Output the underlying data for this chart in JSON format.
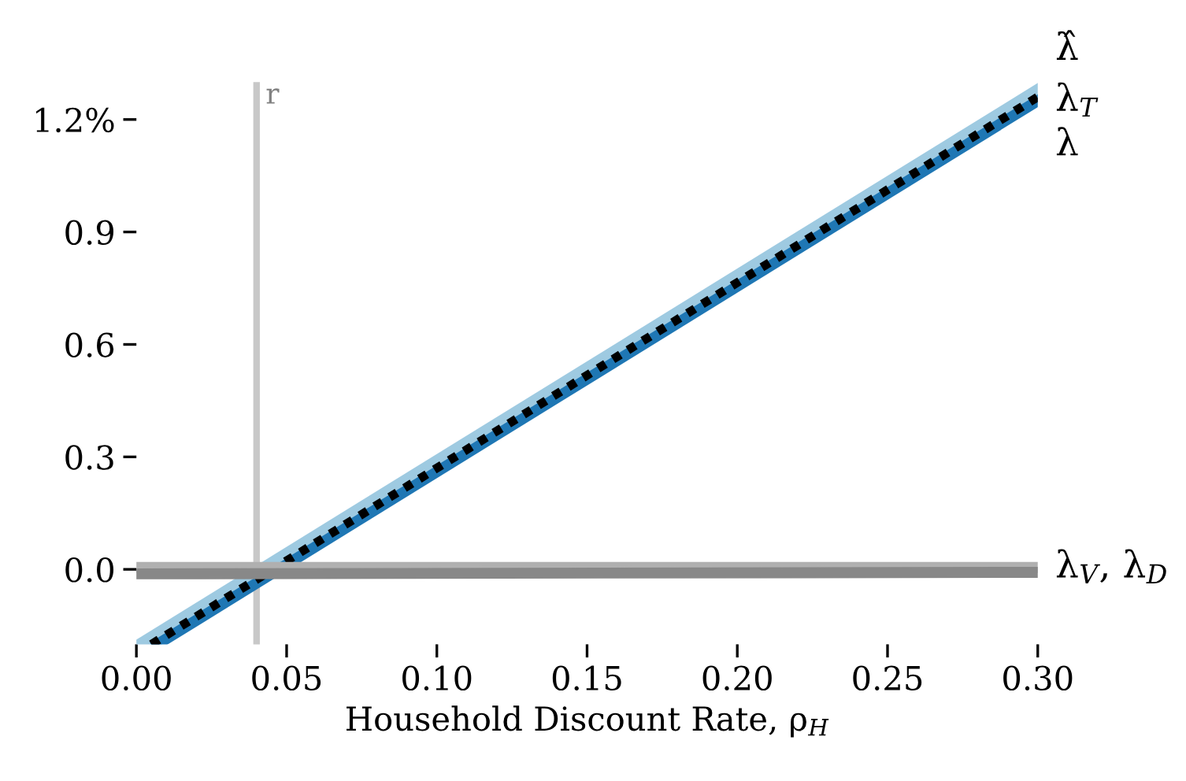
{
  "chart_data": {
    "type": "line",
    "xlabel": "Household Discount Rate, ρ$_{H}$",
    "x": [
      0.003,
      0.3
    ],
    "series": [
      {
        "name": "λ̂",
        "color": "#9ecae1",
        "values": [
          -0.2,
          1.27
        ]
      },
      {
        "name": "λ$_{T}$",
        "color": "#1f77b4",
        "x": [
          0.007,
          0.3
        ],
        "values": [
          -0.2,
          1.25
        ]
      },
      {
        "name": "λ",
        "color": "#000000",
        "x": [
          0.005,
          0.3
        ],
        "values": [
          -0.2,
          1.26
        ],
        "line_style": "dotted"
      },
      {
        "color": "#b0b0b0",
        "x": [
          0.0,
          0.3
        ],
        "values": [
          0.005,
          0.005
        ]
      },
      {
        "color": "#888888",
        "x": [
          0.0,
          0.3
        ],
        "values": [
          -0.012,
          -0.008
        ]
      }
    ],
    "xlim": [
      0,
      0.3
    ],
    "ylim": [
      -0.2,
      1.3
    ],
    "xticks": [
      {
        "value": 0,
        "label": "0.00"
      },
      0.05,
      {
        "value": 0.1,
        "label": "0.10"
      },
      0.15,
      {
        "value": 0.2,
        "label": "0.20"
      },
      0.25,
      {
        "value": 0.3,
        "label": "0.30"
      }
    ],
    "yticks": [
      {
        "value": 0,
        "label": "0.0"
      },
      0.3,
      0.6,
      0.9,
      {
        "value": 1.2,
        "label": "1.2%"
      }
    ],
    "ref_lines": [
      {
        "axis": "x",
        "value": 0.04,
        "label": "r",
        "color": "#c8c8c8"
      }
    ],
    "annotations": [
      {
        "text": "λ$_{V}$, λ$_{D}$",
        "x": 0.3,
        "y": 0.005
      }
    ],
    "grid": false,
    "legend": false
  }
}
